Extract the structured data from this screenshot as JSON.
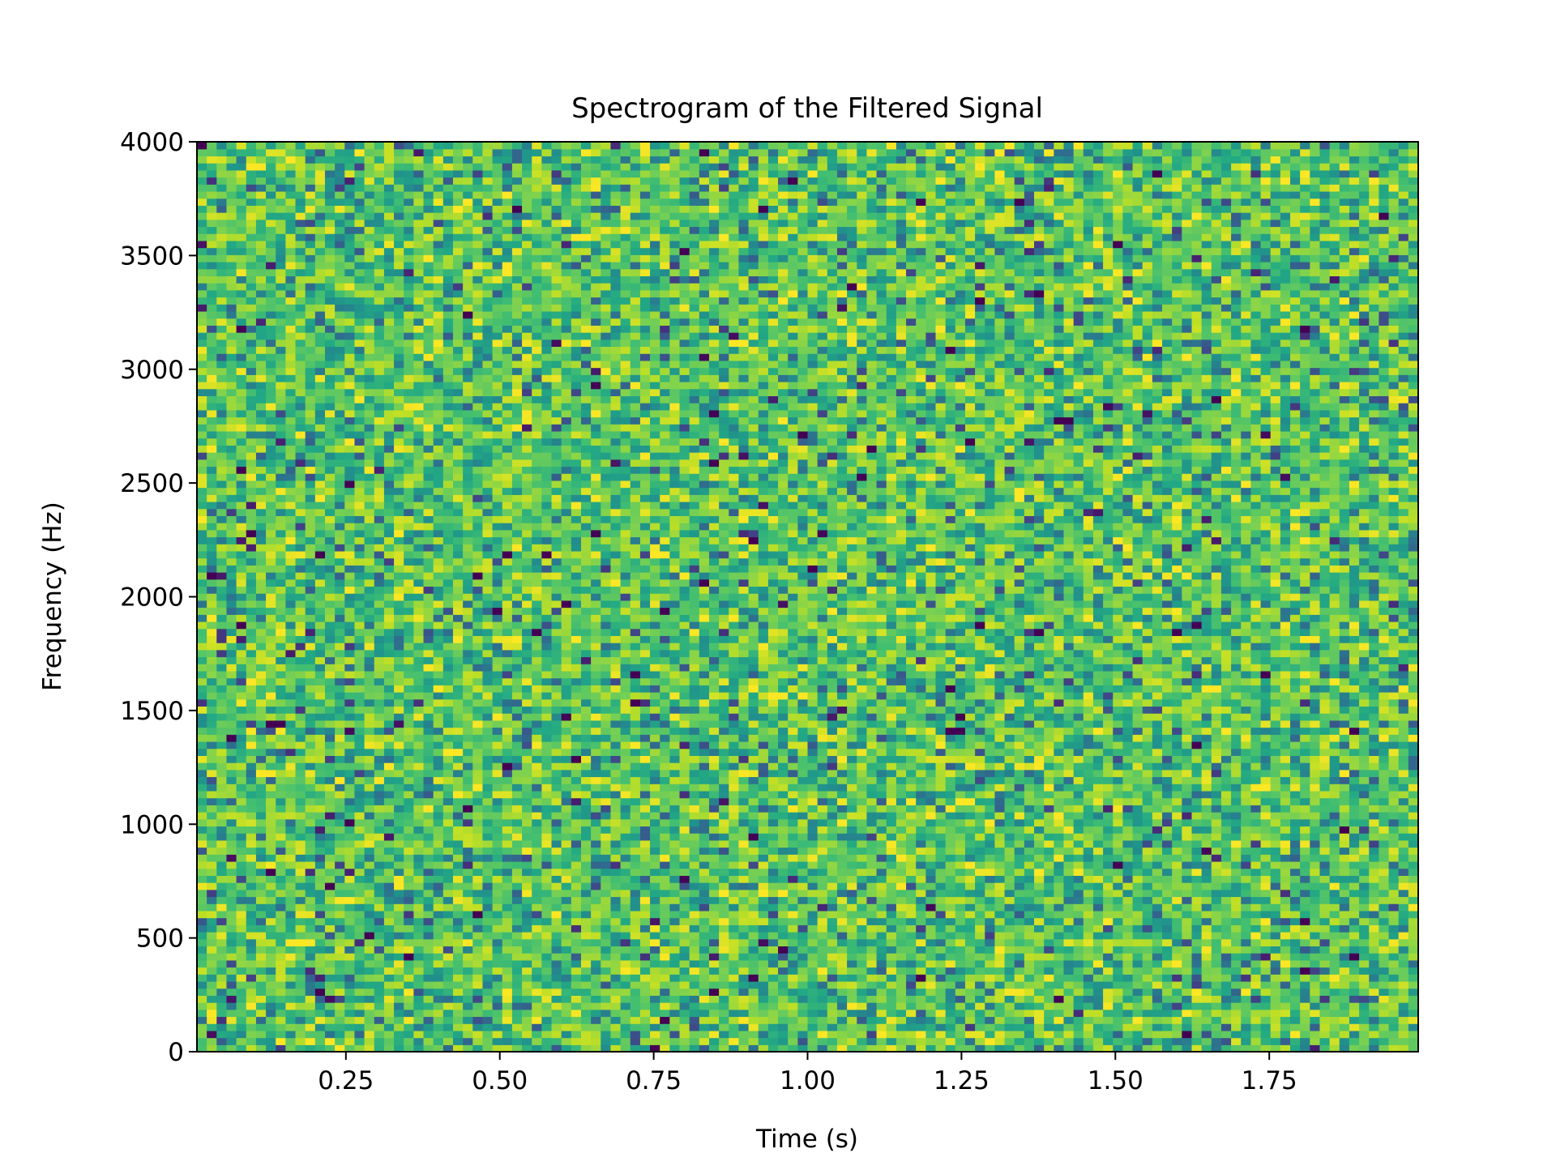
{
  "chart_data": {
    "type": "heatmap",
    "title": "Spectrogram of the Filtered Signal",
    "xlabel": "Time (s)",
    "ylabel": "Frequency (Hz)",
    "xlim": [
      0.008,
      1.992
    ],
    "ylim": [
      0,
      4000
    ],
    "x_ticks": [
      0.25,
      0.5,
      0.75,
      1.0,
      1.25,
      1.5,
      1.75
    ],
    "x_tick_labels": [
      "0.25",
      "0.50",
      "0.75",
      "1.00",
      "1.25",
      "1.50",
      "1.75"
    ],
    "y_ticks": [
      0,
      500,
      1000,
      1500,
      2000,
      2500,
      3000,
      3500,
      4000
    ],
    "y_tick_labels": [
      "0",
      "500",
      "1000",
      "1500",
      "2000",
      "2500",
      "3000",
      "3500",
      "4000"
    ],
    "colormap": "viridis",
    "grid": false,
    "cells": {
      "time_bins": 124,
      "frequency_bins": 129,
      "description": "broadband noise, roughly uniform power across all time and frequency"
    }
  }
}
